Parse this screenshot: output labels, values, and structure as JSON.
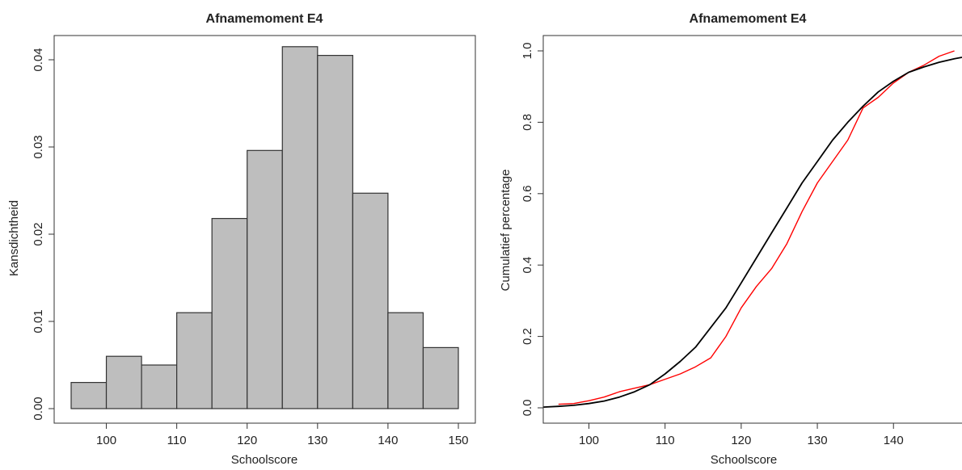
{
  "chart_data": [
    {
      "type": "bar",
      "title": "Afnamemoment E4",
      "xlabel": "Schoolscore",
      "ylabel": "Kansdichtheid",
      "bin_edges": [
        95,
        100,
        105,
        110,
        115,
        120,
        125,
        130,
        135,
        140,
        145,
        150
      ],
      "values": [
        0.003,
        0.006,
        0.005,
        0.011,
        0.0218,
        0.0296,
        0.0415,
        0.0405,
        0.0247,
        0.011,
        0.007
      ],
      "xlim": [
        95,
        150
      ],
      "ylim": [
        0,
        0.04
      ],
      "xticks": [
        "100",
        "110",
        "120",
        "130",
        "140",
        "150"
      ],
      "yticks": [
        "0.00",
        "0.01",
        "0.02",
        "0.03",
        "0.04"
      ],
      "bar_color": "#bebebe",
      "grid": false
    },
    {
      "type": "line",
      "title": "Afnamemoment E4",
      "xlabel": "Schoolscore",
      "ylabel": "Cumulatief percentage",
      "xlim": [
        94,
        149
      ],
      "ylim": [
        0,
        1
      ],
      "xticks": [
        "100",
        "110",
        "120",
        "130",
        "140"
      ],
      "yticks": [
        "0.0",
        "0.2",
        "0.4",
        "0.6",
        "0.8",
        "1.0"
      ],
      "grid": false,
      "series": [
        {
          "color": "#ff0000",
          "x": [
            96,
            98,
            100,
            102,
            104,
            106,
            108,
            110,
            112,
            114,
            116,
            118,
            120,
            122,
            124,
            126,
            128,
            130,
            132,
            134,
            136,
            138,
            140,
            142,
            144,
            146,
            148
          ],
          "y": [
            0.01,
            0.012,
            0.02,
            0.03,
            0.045,
            0.055,
            0.065,
            0.08,
            0.095,
            0.115,
            0.14,
            0.2,
            0.28,
            0.34,
            0.39,
            0.46,
            0.55,
            0.63,
            0.69,
            0.75,
            0.84,
            0.87,
            0.91,
            0.94,
            0.96,
            0.985,
            1.0
          ]
        },
        {
          "color": "#000000",
          "x": [
            94,
            96,
            98,
            100,
            102,
            104,
            106,
            108,
            110,
            112,
            114,
            116,
            118,
            120,
            122,
            124,
            126,
            128,
            130,
            132,
            134,
            136,
            138,
            140,
            142,
            144,
            146,
            148,
            149
          ],
          "y": [
            0.002,
            0.004,
            0.007,
            0.012,
            0.019,
            0.03,
            0.045,
            0.065,
            0.095,
            0.13,
            0.17,
            0.225,
            0.28,
            0.35,
            0.42,
            0.49,
            0.56,
            0.63,
            0.69,
            0.75,
            0.8,
            0.845,
            0.885,
            0.915,
            0.94,
            0.955,
            0.968,
            0.978,
            0.982
          ]
        }
      ]
    }
  ]
}
